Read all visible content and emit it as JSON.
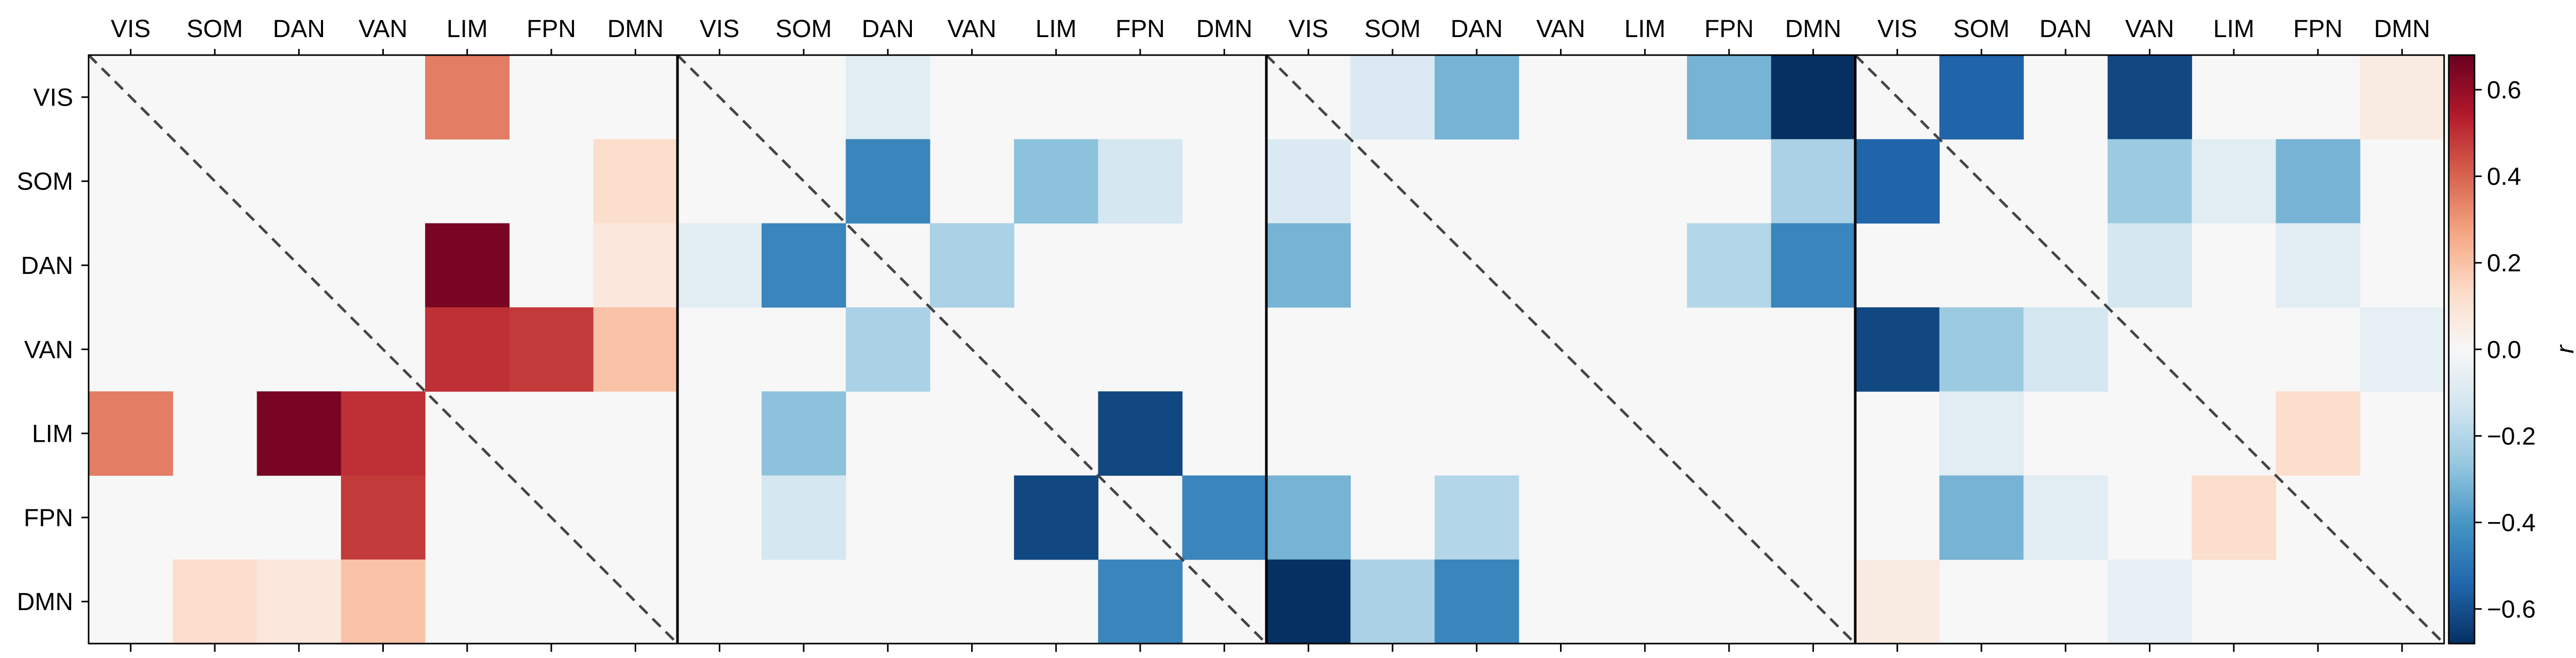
{
  "chart_data": {
    "type": "heatmap",
    "networks": [
      "VIS",
      "SOM",
      "DAN",
      "VAN",
      "LIM",
      "FPN",
      "DMN"
    ],
    "colorbar": {
      "label": "r",
      "range": [
        -0.68,
        0.68
      ],
      "ticks": [
        "0.6",
        "0.4",
        "0.2",
        "0.0",
        "−0.2",
        "−0.4",
        "−0.6"
      ],
      "tick_values": [
        0.6,
        0.4,
        0.2,
        0.0,
        -0.2,
        -0.4,
        -0.6
      ],
      "colormap": "RdBu_r",
      "colors": {
        "neg_max": "#053061",
        "neg_strong": "#2166ac",
        "neg_mid": "#4393c3",
        "neg_light": "#92c5de",
        "neg_pale": "#d1e5f0",
        "neutral": "#f7f7f7",
        "pos_pale": "#fddbc7",
        "pos_light": "#f4a582",
        "pos_mid": "#d6604d",
        "pos_strong": "#b2182b",
        "pos_max": "#67001f"
      }
    },
    "diagonal_line": "dashed",
    "panels": [
      {
        "matrix": [
          [
            0,
            0,
            0,
            0,
            0.35,
            0,
            0
          ],
          [
            0,
            0,
            0,
            0,
            0,
            0,
            0.12
          ],
          [
            0,
            0,
            0,
            0,
            0.65,
            0,
            0.08
          ],
          [
            0,
            0,
            0,
            0,
            0.5,
            0.48,
            0.2
          ],
          [
            0.35,
            0,
            0.65,
            0.5,
            0,
            0,
            0
          ],
          [
            0,
            0,
            0,
            0.48,
            0,
            0,
            0
          ],
          [
            0,
            0.12,
            0.08,
            0.2,
            0,
            0,
            0
          ]
        ]
      },
      {
        "matrix": [
          [
            0,
            0,
            -0.08,
            0,
            0,
            0,
            0
          ],
          [
            0,
            0,
            -0.45,
            0,
            -0.28,
            -0.12,
            0
          ],
          [
            -0.08,
            -0.45,
            0,
            -0.22,
            0,
            0,
            0
          ],
          [
            0,
            0,
            -0.22,
            0,
            0,
            0,
            0
          ],
          [
            0,
            -0.28,
            0,
            0,
            0,
            -0.62,
            0
          ],
          [
            0,
            -0.12,
            0,
            0,
            -0.62,
            0,
            -0.45
          ],
          [
            0,
            0,
            0,
            0,
            0,
            -0.45,
            0
          ]
        ]
      },
      {
        "matrix": [
          [
            0,
            -0.1,
            -0.32,
            0,
            0,
            -0.32,
            -0.68
          ],
          [
            -0.1,
            0,
            0,
            0,
            0,
            0,
            -0.22
          ],
          [
            -0.32,
            0,
            0,
            0,
            0,
            -0.2,
            -0.45
          ],
          [
            0,
            0,
            0,
            0,
            0,
            0,
            0
          ],
          [
            0,
            0,
            0,
            0,
            0,
            0,
            0
          ],
          [
            -0.32,
            0,
            -0.2,
            0,
            0,
            0,
            0
          ],
          [
            -0.68,
            -0.22,
            -0.45,
            0,
            0,
            0,
            0
          ]
        ]
      },
      {
        "matrix": [
          [
            0,
            -0.55,
            0,
            -0.62,
            0,
            0,
            0.06
          ],
          [
            -0.55,
            0,
            0,
            -0.25,
            -0.08,
            -0.32,
            0
          ],
          [
            0,
            0,
            0,
            -0.12,
            0,
            -0.08,
            0
          ],
          [
            -0.62,
            -0.25,
            -0.12,
            0,
            0,
            0,
            -0.06
          ],
          [
            0,
            -0.08,
            0,
            0,
            0,
            0.12,
            0
          ],
          [
            0,
            -0.32,
            -0.08,
            0,
            0.12,
            0,
            0
          ],
          [
            0.06,
            0,
            0,
            -0.06,
            0,
            0,
            0
          ]
        ]
      }
    ]
  }
}
